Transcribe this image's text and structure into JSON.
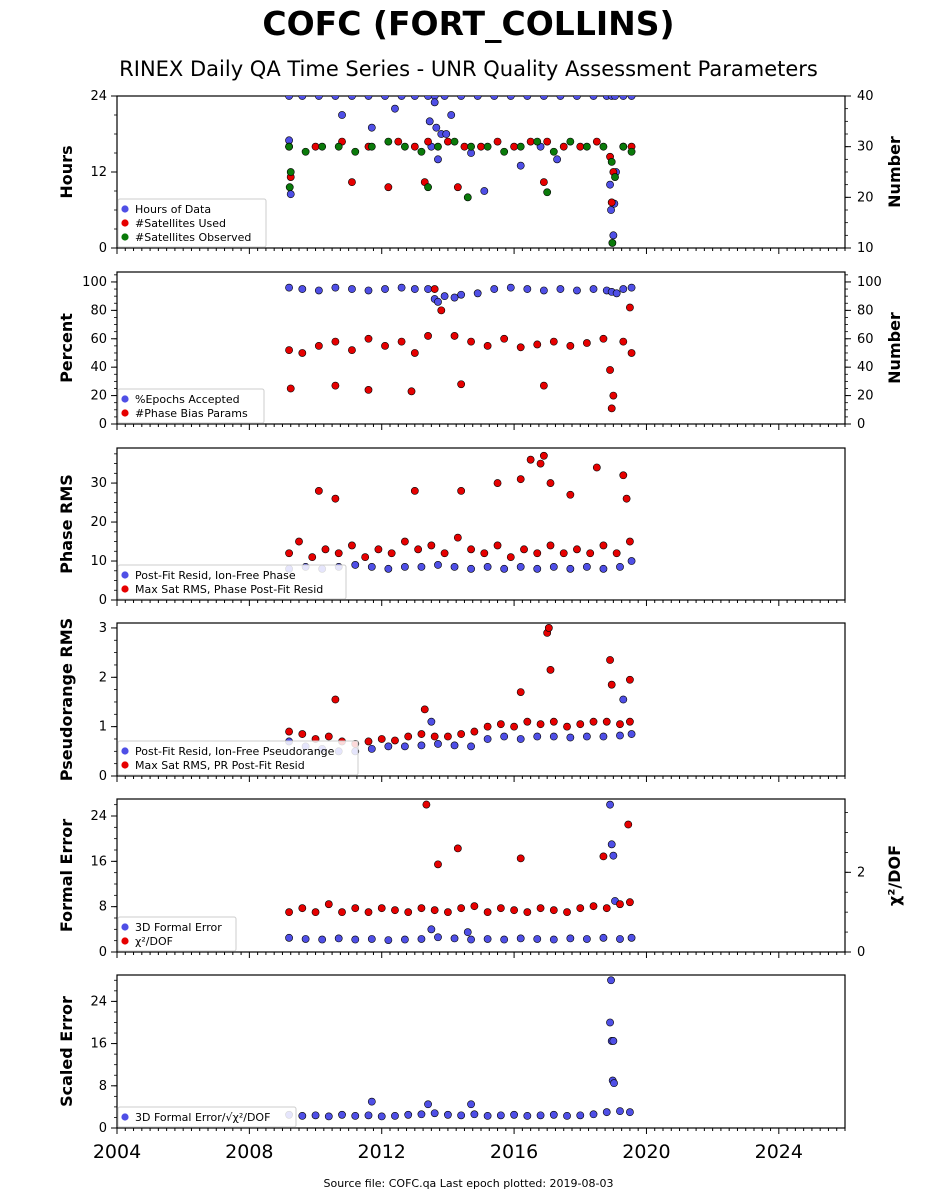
{
  "title": "COFC (FORT_COLLINS)",
  "subtitle": "RINEX Daily QA Time Series - UNR Quality Assessment Parameters",
  "source_note": "Source file: COFC.qa Last epoch plotted: 2019-08-03",
  "colors": {
    "blue": "#4f4fe6",
    "red": "#e60000",
    "green": "#0a7a0a",
    "edge": "#000000"
  },
  "chart_data": [
    {
      "type": "scatter",
      "title": "",
      "xlabel": "",
      "ylabel": "Hours",
      "ylabel_right": "Number",
      "xlim": [
        2004,
        2026
      ],
      "ylim": [
        0,
        24
      ],
      "yticks": [
        "0",
        "12",
        "24"
      ],
      "ylim_right": [
        10,
        40
      ],
      "yticks_right": [
        "10",
        "20",
        "30",
        "40"
      ],
      "legend_position": "lower-left",
      "series": [
        {
          "name": "Hours of Data",
          "color": "#4f4fe6",
          "axis": "left",
          "x": [
            2009.2,
            2009.6,
            2010.1,
            2010.6,
            2011.1,
            2011.6,
            2012.1,
            2012.6,
            2013.0,
            2013.4,
            2013.6,
            2013.9,
            2014.4,
            2014.9,
            2015.4,
            2015.9,
            2016.4,
            2016.9,
            2017.4,
            2017.9,
            2018.4,
            2018.8,
            2018.95,
            2019.05,
            2019.3,
            2019.55,
            2009.2,
            2009.25,
            2010.8,
            2011.7,
            2012.4,
            2013.45,
            2013.5,
            2013.7,
            2013.8,
            2014.7,
            2015.1,
            2016.2,
            2016.8,
            2017.3,
            2018.9,
            2018.93,
            2019.0,
            2019.03,
            2019.08,
            2013.95,
            2014.1,
            2013.6,
            2013.65
          ],
          "y": [
            24,
            24,
            24,
            24,
            24,
            24,
            24,
            24,
            24,
            24,
            24,
            24,
            24,
            24,
            24,
            24,
            24,
            24,
            24,
            24,
            24,
            24,
            24,
            24,
            24,
            24,
            17,
            8.5,
            21,
            19,
            22,
            20,
            16,
            14,
            18,
            15,
            9,
            13,
            16,
            14,
            10,
            6,
            2,
            7,
            12,
            18,
            21,
            23,
            19
          ]
        },
        {
          "name": "#Satellites Used",
          "color": "#e60000",
          "axis": "right",
          "x": [
            2009.2,
            2009.25,
            2010.0,
            2010.8,
            2011.6,
            2012.5,
            2013.0,
            2013.4,
            2014.0,
            2014.5,
            2015.0,
            2015.5,
            2016.0,
            2016.5,
            2017.0,
            2017.5,
            2018.0,
            2018.5,
            2018.9,
            2019.0,
            2019.3,
            2019.55,
            2011.1,
            2012.2,
            2013.3,
            2014.3,
            2016.9,
            2018.95
          ],
          "y": [
            30,
            24,
            30,
            31,
            30,
            31,
            30,
            31,
            31,
            30,
            30,
            31,
            30,
            31,
            31,
            30,
            30,
            31,
            28,
            25,
            30,
            30,
            23,
            22,
            23,
            22,
            23,
            19
          ]
        },
        {
          "name": "#Satellites Observed",
          "color": "#0a7a0a",
          "axis": "right",
          "x": [
            2009.2,
            2009.25,
            2009.7,
            2010.2,
            2010.7,
            2011.2,
            2011.7,
            2012.2,
            2012.7,
            2013.2,
            2013.7,
            2014.2,
            2014.7,
            2015.2,
            2015.7,
            2016.2,
            2016.7,
            2017.2,
            2017.7,
            2018.2,
            2018.7,
            2018.95,
            2019.05,
            2019.3,
            2019.55,
            2009.22,
            2013.4,
            2014.6,
            2017.0,
            2018.97
          ],
          "y": [
            30,
            25,
            29,
            30,
            30,
            29,
            30,
            31,
            30,
            29,
            30,
            31,
            30,
            30,
            29,
            30,
            31,
            29,
            31,
            30,
            30,
            27,
            24,
            30,
            29,
            22,
            22,
            20,
            21,
            11
          ]
        }
      ]
    },
    {
      "type": "scatter",
      "title": "",
      "xlabel": "",
      "ylabel": "Percent",
      "ylabel_right": "Number",
      "xlim": [
        2004,
        2026
      ],
      "ylim": [
        0,
        107
      ],
      "yticks": [
        "0",
        "20",
        "40",
        "60",
        "80",
        "100"
      ],
      "ylim_right": [
        0,
        107
      ],
      "yticks_right": [
        "0",
        "20",
        "40",
        "60",
        "80",
        "100"
      ],
      "legend_position": "lower-left",
      "series": [
        {
          "name": "%Epochs Accepted",
          "color": "#4f4fe6",
          "axis": "left",
          "x": [
            2009.2,
            2009.6,
            2010.1,
            2010.6,
            2011.1,
            2011.6,
            2012.1,
            2012.6,
            2013.0,
            2013.4,
            2013.6,
            2013.9,
            2014.4,
            2014.9,
            2015.4,
            2015.9,
            2016.4,
            2016.9,
            2017.4,
            2017.9,
            2018.4,
            2018.8,
            2018.95,
            2019.1,
            2019.3,
            2019.55,
            2013.7,
            2014.2
          ],
          "y": [
            96,
            95,
            94,
            96,
            95,
            94,
            95,
            96,
            95,
            95,
            88,
            90,
            91,
            92,
            95,
            96,
            95,
            94,
            95,
            94,
            95,
            94,
            93,
            92,
            95,
            96,
            86,
            89
          ]
        },
        {
          "name": "#Phase Bias Params",
          "color": "#e60000",
          "axis": "right",
          "x": [
            2009.2,
            2009.25,
            2009.6,
            2010.1,
            2010.6,
            2011.1,
            2011.6,
            2012.1,
            2012.6,
            2013.0,
            2013.4,
            2013.6,
            2013.8,
            2014.2,
            2014.7,
            2015.2,
            2015.7,
            2016.2,
            2016.7,
            2017.2,
            2017.7,
            2018.2,
            2018.7,
            2018.9,
            2019.0,
            2019.3,
            2019.55,
            2010.6,
            2011.6,
            2012.9,
            2014.4,
            2016.9,
            2018.95,
            2019.5
          ],
          "y": [
            52,
            25,
            50,
            55,
            58,
            52,
            60,
            55,
            58,
            50,
            62,
            95,
            80,
            62,
            58,
            55,
            60,
            54,
            56,
            58,
            55,
            57,
            60,
            38,
            20,
            58,
            50,
            27,
            24,
            23,
            28,
            27,
            11,
            82
          ]
        }
      ]
    },
    {
      "type": "scatter",
      "title": "",
      "xlabel": "",
      "ylabel": "Phase RMS",
      "xlim": [
        2004,
        2026
      ],
      "ylim": [
        0,
        39
      ],
      "yticks": [
        "0",
        "10",
        "20",
        "30"
      ],
      "legend_position": "lower-left",
      "series": [
        {
          "name": "Post-Fit Resid, Ion-Free Phase",
          "color": "#4f4fe6",
          "axis": "left",
          "x": [
            2009.2,
            2009.7,
            2010.2,
            2010.7,
            2011.2,
            2011.7,
            2012.2,
            2012.7,
            2013.2,
            2013.7,
            2014.2,
            2014.7,
            2015.2,
            2015.7,
            2016.2,
            2016.7,
            2017.2,
            2017.7,
            2018.2,
            2018.7,
            2019.2,
            2019.55
          ],
          "y": [
            8,
            8.5,
            8,
            8.5,
            9,
            8.5,
            8,
            8.5,
            8.5,
            9,
            8.5,
            8,
            8.5,
            8,
            8.5,
            8,
            8.5,
            8,
            8.5,
            8,
            8.5,
            10
          ]
        },
        {
          "name": "Max Sat RMS, Phase Post-Fit Resid",
          "color": "#e60000",
          "axis": "left",
          "x": [
            2009.2,
            2009.5,
            2009.9,
            2010.3,
            2010.7,
            2011.1,
            2011.5,
            2011.9,
            2012.3,
            2012.7,
            2013.1,
            2013.5,
            2013.9,
            2014.3,
            2014.7,
            2015.1,
            2015.5,
            2015.9,
            2016.3,
            2016.7,
            2017.1,
            2017.5,
            2017.9,
            2018.3,
            2018.7,
            2019.1,
            2019.5,
            2010.1,
            2010.6,
            2013.0,
            2014.4,
            2015.5,
            2016.2,
            2016.5,
            2016.8,
            2016.9,
            2017.1,
            2017.7,
            2018.5,
            2019.3,
            2019.4
          ],
          "y": [
            12,
            15,
            11,
            13,
            12,
            14,
            11,
            13,
            12,
            15,
            13,
            14,
            12,
            16,
            13,
            12,
            14,
            11,
            13,
            12,
            14,
            12,
            13,
            12,
            14,
            12,
            15,
            28,
            26,
            28,
            28,
            30,
            31,
            36,
            35,
            37,
            30,
            27,
            34,
            32,
            26
          ]
        }
      ]
    },
    {
      "type": "scatter",
      "title": "",
      "xlabel": "",
      "ylabel": "Pseudorange RMS",
      "xlim": [
        2004,
        2026
      ],
      "ylim": [
        0,
        3.1
      ],
      "yticks": [
        "0",
        "1",
        "2",
        "3"
      ],
      "legend_position": "lower-left",
      "series": [
        {
          "name": "Post-Fit Resid, Ion-Free Pseudorange",
          "color": "#4f4fe6",
          "axis": "left",
          "x": [
            2009.2,
            2009.7,
            2010.2,
            2010.7,
            2011.2,
            2011.7,
            2012.2,
            2012.7,
            2013.2,
            2013.7,
            2014.2,
            2014.7,
            2015.2,
            2015.7,
            2016.2,
            2016.7,
            2017.2,
            2017.7,
            2018.2,
            2018.7,
            2019.2,
            2019.55,
            2013.5,
            2019.3
          ],
          "y": [
            0.7,
            0.6,
            0.55,
            0.5,
            0.5,
            0.55,
            0.6,
            0.6,
            0.62,
            0.65,
            0.62,
            0.6,
            0.75,
            0.8,
            0.75,
            0.8,
            0.8,
            0.78,
            0.8,
            0.8,
            0.82,
            0.85,
            1.1,
            1.55
          ]
        },
        {
          "name": "Max Sat RMS, PR Post-Fit Resid",
          "color": "#e60000",
          "axis": "left",
          "x": [
            2009.2,
            2009.6,
            2010.0,
            2010.4,
            2010.8,
            2011.2,
            2011.6,
            2012.0,
            2012.4,
            2012.8,
            2013.2,
            2013.6,
            2014.0,
            2014.4,
            2014.8,
            2015.2,
            2015.6,
            2016.0,
            2016.4,
            2016.8,
            2017.2,
            2017.6,
            2018.0,
            2018.4,
            2018.8,
            2019.2,
            2019.5,
            2010.6,
            2013.3,
            2016.2,
            2017.0,
            2017.05,
            2017.1,
            2018.9,
            2018.95,
            2019.5
          ],
          "y": [
            0.9,
            0.85,
            0.75,
            0.8,
            0.7,
            0.65,
            0.7,
            0.75,
            0.72,
            0.8,
            0.85,
            0.8,
            0.8,
            0.85,
            0.9,
            1.0,
            1.05,
            1.0,
            1.1,
            1.05,
            1.1,
            1.0,
            1.05,
            1.1,
            1.1,
            1.05,
            1.1,
            1.55,
            1.35,
            1.7,
            2.9,
            3.0,
            2.15,
            2.35,
            1.85,
            1.95
          ]
        }
      ]
    },
    {
      "type": "scatter",
      "title": "",
      "xlabel": "",
      "ylabel": "Formal Error",
      "ylabel_right": "χ²/DOF",
      "xlim": [
        2004,
        2026
      ],
      "ylim": [
        0,
        27
      ],
      "yticks": [
        "0",
        "8",
        "16",
        "24"
      ],
      "ylim_right": [
        0,
        3.84
      ],
      "yticks_right": [
        "0",
        "2"
      ],
      "legend_position": "lower-left",
      "series": [
        {
          "name": "3D Formal Error",
          "color": "#4f4fe6",
          "axis": "left",
          "x": [
            2009.2,
            2009.7,
            2010.2,
            2010.7,
            2011.2,
            2011.7,
            2012.2,
            2012.7,
            2013.2,
            2013.7,
            2014.2,
            2014.7,
            2015.2,
            2015.7,
            2016.2,
            2016.7,
            2017.2,
            2017.7,
            2018.2,
            2018.7,
            2019.2,
            2019.55,
            2018.9,
            2018.95,
            2019.0,
            2019.05,
            2013.5,
            2014.6
          ],
          "y": [
            2.5,
            2.3,
            2.2,
            2.4,
            2.2,
            2.3,
            2.1,
            2.2,
            2.3,
            2.6,
            2.4,
            2.2,
            2.3,
            2.2,
            2.4,
            2.3,
            2.2,
            2.4,
            2.3,
            2.5,
            2.3,
            2.5,
            26,
            19,
            17,
            9,
            4,
            3.5
          ]
        },
        {
          "name": "χ²/DOF",
          "color": "#e60000",
          "axis": "right",
          "x": [
            2009.2,
            2009.6,
            2010.0,
            2010.4,
            2010.8,
            2011.2,
            2011.6,
            2012.0,
            2012.4,
            2012.8,
            2013.2,
            2013.6,
            2014.0,
            2014.4,
            2014.8,
            2015.2,
            2015.6,
            2016.0,
            2016.4,
            2016.8,
            2017.2,
            2017.6,
            2018.0,
            2018.4,
            2018.8,
            2019.2,
            2019.5,
            2013.35,
            2013.7,
            2014.3,
            2016.2,
            2018.7,
            2019.45
          ],
          "y": [
            1.0,
            1.1,
            1.0,
            1.2,
            1.0,
            1.1,
            1.0,
            1.1,
            1.05,
            1.0,
            1.1,
            1.05,
            1.0,
            1.1,
            1.15,
            1.0,
            1.1,
            1.05,
            1.0,
            1.1,
            1.05,
            1.0,
            1.1,
            1.15,
            1.1,
            1.2,
            1.25,
            3.7,
            2.2,
            2.6,
            2.35,
            2.4,
            3.2
          ]
        }
      ]
    },
    {
      "type": "scatter",
      "title": "",
      "xlabel": "",
      "ylabel": "Scaled Error",
      "xlim": [
        2004,
        2026
      ],
      "ylim": [
        0,
        29
      ],
      "yticks": [
        "0",
        "8",
        "16",
        "24"
      ],
      "xticks": [
        "2004",
        "2008",
        "2012",
        "2016",
        "2020",
        "2024"
      ],
      "legend_position": "lower-left",
      "series": [
        {
          "name": "3D Formal Error/√χ²/DOF",
          "color": "#4f4fe6",
          "axis": "left",
          "x": [
            2009.2,
            2009.6,
            2010.0,
            2010.4,
            2010.8,
            2011.2,
            2011.6,
            2012.0,
            2012.4,
            2012.8,
            2013.2,
            2013.6,
            2014.0,
            2014.4,
            2014.8,
            2015.2,
            2015.6,
            2016.0,
            2016.4,
            2016.8,
            2017.2,
            2017.6,
            2018.0,
            2018.4,
            2018.8,
            2019.2,
            2019.5,
            2018.93,
            2018.9,
            2018.95,
            2019.0,
            2018.98,
            2019.02,
            2011.7,
            2013.4,
            2014.7
          ],
          "y": [
            2.5,
            2.3,
            2.4,
            2.2,
            2.5,
            2.3,
            2.4,
            2.2,
            2.3,
            2.5,
            2.6,
            2.8,
            2.5,
            2.4,
            2.6,
            2.3,
            2.4,
            2.5,
            2.3,
            2.4,
            2.5,
            2.3,
            2.4,
            2.6,
            3.0,
            3.2,
            3.0,
            28,
            20,
            16.5,
            16.5,
            9,
            8.5,
            5,
            4.5,
            4.5
          ]
        }
      ]
    }
  ]
}
